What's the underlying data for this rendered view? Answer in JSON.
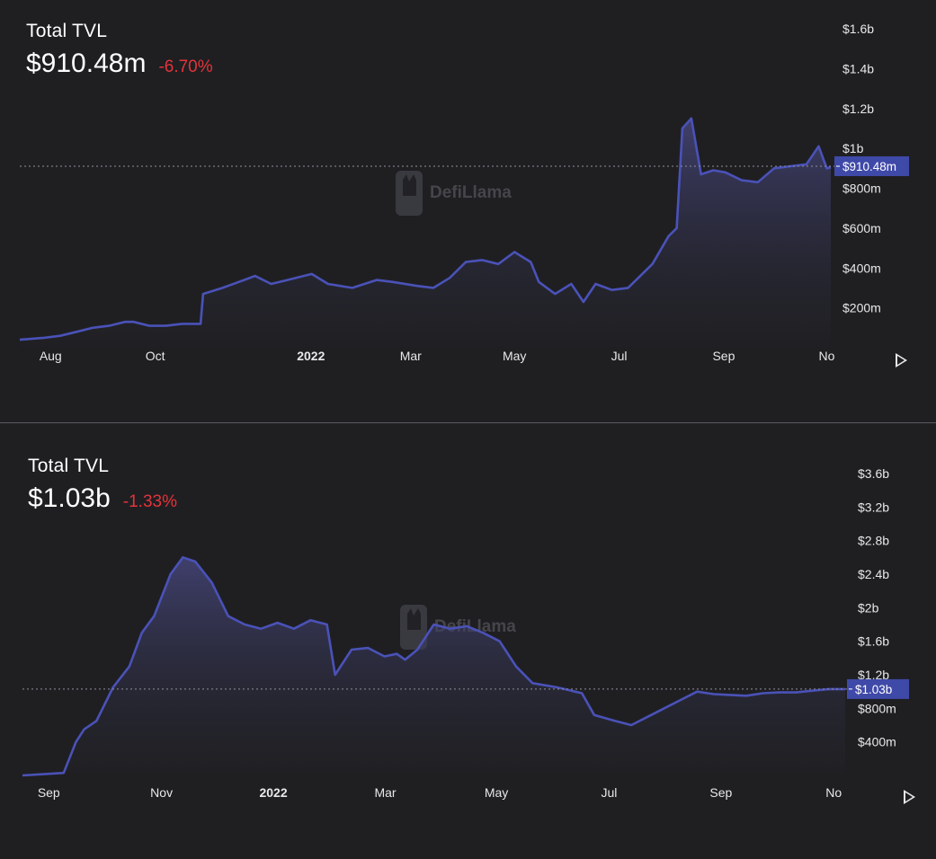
{
  "colors": {
    "background": "#1f1f22",
    "line": "#4a52b8",
    "tag": "#3f49a8",
    "change_negative": "#e3343a",
    "text": "#ffffff",
    "axis_text": "#e8e8e8"
  },
  "watermark": {
    "text": "DefiLlama",
    "icon": "llama-logo-icon"
  },
  "charts": [
    {
      "title": "Total TVL",
      "value": "$910.48m",
      "change": "-6.70%",
      "play_icon": "play-icon",
      "current_label": "$910.48m"
    },
    {
      "title": "Total TVL",
      "value": "$1.03b",
      "change": "-1.33%",
      "play_icon": "play-icon",
      "current_label": "$1.03b"
    }
  ],
  "chart_data": [
    {
      "type": "area",
      "title": "Total TVL",
      "x_ticks": [
        "Aug",
        "Oct",
        "2022",
        "Mar",
        "May",
        "Jul",
        "Sep",
        "No"
      ],
      "y_ticks": [
        "$200m",
        "$400m",
        "$600m",
        "$800m",
        "$1b",
        "$1.2b",
        "$1.4b",
        "$1.6b"
      ],
      "y_tick_values": [
        200,
        400,
        600,
        800,
        1000,
        1200,
        1400,
        1600
      ],
      "y_unit": "millions USD",
      "ylim": [
        0,
        1650
      ],
      "current_value": 910.48,
      "x_range": [
        0,
        100
      ],
      "x_tick_positions": [
        3.8,
        16.7,
        35.9,
        48.2,
        61.0,
        73.9,
        86.8,
        99.5
      ],
      "series": [
        {
          "points": [
            [
              0,
              40
            ],
            [
              3,
              50
            ],
            [
              5,
              60
            ],
            [
              7,
              80
            ],
            [
              9,
              100
            ],
            [
              11,
              110
            ],
            [
              13,
              130
            ],
            [
              14,
              130
            ],
            [
              16,
              110
            ],
            [
              18,
              110
            ],
            [
              20,
              120
            ],
            [
              22.3,
              120
            ],
            [
              22.6,
              270
            ],
            [
              25,
              300
            ],
            [
              27,
              330
            ],
            [
              29,
              360
            ],
            [
              31,
              320
            ],
            [
              33,
              340
            ],
            [
              36,
              370
            ],
            [
              38,
              320
            ],
            [
              41,
              300
            ],
            [
              44,
              340
            ],
            [
              46,
              330
            ],
            [
              49,
              310
            ],
            [
              51,
              300
            ],
            [
              53,
              350
            ],
            [
              55,
              430
            ],
            [
              57,
              440
            ],
            [
              59,
              420
            ],
            [
              61,
              480
            ],
            [
              63,
              430
            ],
            [
              64,
              330
            ],
            [
              66,
              270
            ],
            [
              68,
              320
            ],
            [
              69.5,
              230
            ],
            [
              71,
              320
            ],
            [
              73,
              290
            ],
            [
              75,
              300
            ],
            [
              78,
              420
            ],
            [
              80,
              560
            ],
            [
              81,
              600
            ],
            [
              81.7,
              1100
            ],
            [
              82.8,
              1150
            ],
            [
              84,
              870
            ],
            [
              85.5,
              890
            ],
            [
              87,
              880
            ],
            [
              89,
              840
            ],
            [
              91,
              830
            ],
            [
              93,
              900
            ],
            [
              95,
              910
            ],
            [
              97,
              920
            ],
            [
              98.5,
              1010
            ],
            [
              99.5,
              900
            ],
            [
              100,
              905
            ]
          ]
        }
      ]
    },
    {
      "type": "area",
      "title": "Total TVL",
      "x_ticks": [
        "Sep",
        "Nov",
        "2022",
        "Mar",
        "May",
        "Jul",
        "Sep",
        "No"
      ],
      "y_ticks": [
        "$400m",
        "$800m",
        "$1.2b",
        "$1.6b",
        "$2b",
        "$2.4b",
        "$2.8b",
        "$3.2b",
        "$3.6b"
      ],
      "y_tick_values": [
        400,
        800,
        1200,
        1600,
        2000,
        2400,
        2800,
        3200,
        3600
      ],
      "y_unit": "millions USD",
      "ylim": [
        0,
        3750
      ],
      "current_value": 1030,
      "x_range": [
        0,
        100
      ],
      "x_tick_positions": [
        3.2,
        16.9,
        30.5,
        44.1,
        57.6,
        71.3,
        84.9,
        98.6
      ],
      "series": [
        {
          "points": [
            [
              0,
              0
            ],
            [
              5,
              30
            ],
            [
              6.5,
              400
            ],
            [
              7.5,
              550
            ],
            [
              9,
              650
            ],
            [
              11,
              1050
            ],
            [
              13,
              1300
            ],
            [
              14.5,
              1700
            ],
            [
              16,
              1900
            ],
            [
              18,
              2400
            ],
            [
              19.5,
              2600
            ],
            [
              21,
              2550
            ],
            [
              23,
              2300
            ],
            [
              25,
              1900
            ],
            [
              27,
              1800
            ],
            [
              29,
              1750
            ],
            [
              31,
              1820
            ],
            [
              33,
              1750
            ],
            [
              35,
              1850
            ],
            [
              37,
              1800
            ],
            [
              38,
              1200
            ],
            [
              40,
              1500
            ],
            [
              42,
              1520
            ],
            [
              44,
              1420
            ],
            [
              45.5,
              1450
            ],
            [
              46.5,
              1380
            ],
            [
              48,
              1500
            ],
            [
              50,
              1800
            ],
            [
              52,
              1750
            ],
            [
              54,
              1780
            ],
            [
              56,
              1700
            ],
            [
              58,
              1600
            ],
            [
              60,
              1300
            ],
            [
              62,
              1100
            ],
            [
              65,
              1050
            ],
            [
              68,
              980
            ],
            [
              69.5,
              720
            ],
            [
              72,
              650
            ],
            [
              74,
              600
            ],
            [
              76,
              700
            ],
            [
              78,
              800
            ],
            [
              80,
              900
            ],
            [
              82,
              1000
            ],
            [
              84,
              970
            ],
            [
              86,
              960
            ],
            [
              88,
              950
            ],
            [
              90,
              980
            ],
            [
              92,
              990
            ],
            [
              94,
              990
            ],
            [
              96,
              1010
            ],
            [
              98,
              1030
            ],
            [
              100,
              1030
            ]
          ]
        }
      ]
    }
  ]
}
